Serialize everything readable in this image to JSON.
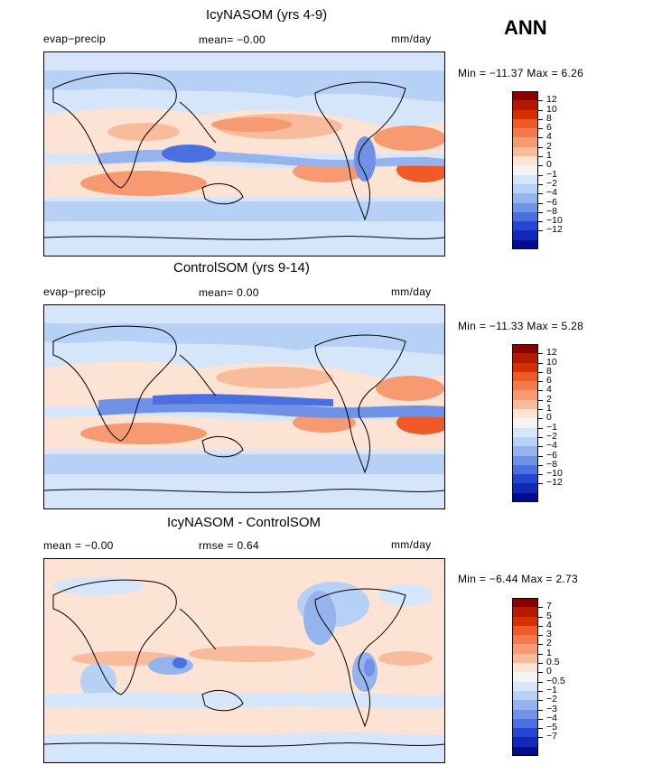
{
  "season_label": "ANN",
  "panels": [
    {
      "title": "IcyNASOM (yrs 4-9)",
      "left_label": "evap−precip",
      "center_label": "mean=   −0.00",
      "right_label": "mm/day",
      "minmax": "Min = −11.37 Max =    6.26",
      "colorbar": {
        "colors": [
          "#8b0000",
          "#b31a00",
          "#d73000",
          "#ef5a28",
          "#f47a4e",
          "#f79a72",
          "#f8bb9c",
          "#fde3d3",
          "#f4f4f4",
          "#d5e6fb",
          "#b7d0f5",
          "#95b4ee",
          "#6f92e6",
          "#4a6fe0",
          "#2545d4",
          "#1029b8",
          "#000e8e"
        ],
        "labels": [
          "12",
          "10",
          "8",
          "6",
          "4",
          "2",
          "1",
          "0",
          "−1",
          "−2",
          "−4",
          "−6",
          "−8",
          "−10",
          "−12"
        ]
      }
    },
    {
      "title": "ControlSOM (yrs 9-14)",
      "left_label": "evap−precip",
      "center_label": "mean=    0.00",
      "right_label": "mm/day",
      "minmax": "Min = −11.33 Max =    5.28",
      "colorbar": {
        "colors": [
          "#8b0000",
          "#b31a00",
          "#d73000",
          "#ef5a28",
          "#f47a4e",
          "#f79a72",
          "#f8bb9c",
          "#fde3d3",
          "#f4f4f4",
          "#d5e6fb",
          "#b7d0f5",
          "#95b4ee",
          "#6f92e6",
          "#4a6fe0",
          "#2545d4",
          "#1029b8",
          "#000e8e"
        ],
        "labels": [
          "12",
          "10",
          "8",
          "6",
          "4",
          "2",
          "1",
          "0",
          "−1",
          "−2",
          "−4",
          "−6",
          "−8",
          "−10",
          "−12"
        ]
      }
    },
    {
      "title": "IcyNASOM - ControlSOM",
      "left_label": "mean =   −0.00",
      "center_label": "rmse =    0.64",
      "right_label": "mm/day",
      "minmax": "Min =   −6.44 Max =    2.73",
      "colorbar": {
        "colors": [
          "#8b0000",
          "#b31a00",
          "#d73000",
          "#ef5a28",
          "#f47a4e",
          "#f79a72",
          "#f8bb9c",
          "#fde3d3",
          "#f4f4f4",
          "#d5e6fb",
          "#b7d0f5",
          "#95b4ee",
          "#6f92e6",
          "#4a6fe0",
          "#2545d4",
          "#1029b8",
          "#000e8e"
        ],
        "labels": [
          "7",
          "5",
          "4",
          "3",
          "2",
          "1",
          "0.5",
          "0",
          "−0.5",
          "−1",
          "−2",
          "−3",
          "−4",
          "−5",
          "−7"
        ]
      }
    }
  ]
}
